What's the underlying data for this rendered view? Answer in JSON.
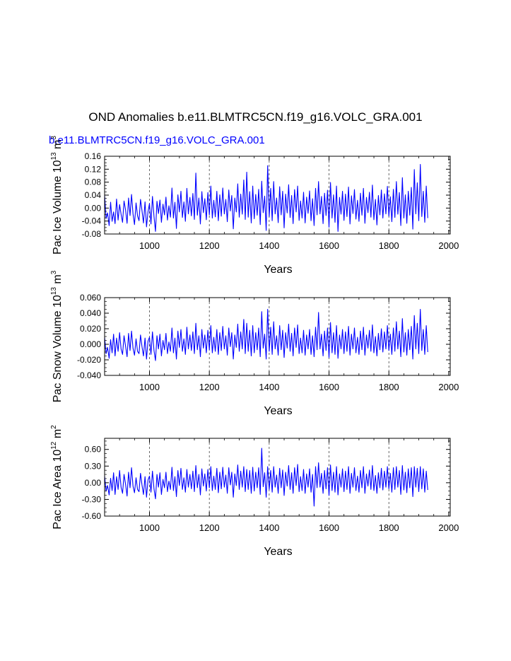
{
  "page": {
    "title": "OND Anomalies b.e11.BLMTRC5CN.f19_g16.VOLC_GRA.001",
    "run_label": "b.e11.BLMTRC5CN.f19_g16.VOLC_GRA.001",
    "line_color": "#0000ff",
    "grid_color": "#444444"
  },
  "chart_data": [
    {
      "type": "line",
      "title": "",
      "ylabel_main": "Pac Ice Volume 10",
      "ylabel_exp1": "13",
      "ylabel_unit": " m",
      "ylabel_exp2": "3",
      "xlabel": "Years",
      "xlim": [
        850,
        2005
      ],
      "ylim": [
        -0.08,
        0.16
      ],
      "yticks": [
        -0.08,
        -0.04,
        0.0,
        0.04,
        0.08,
        0.12,
        0.16
      ],
      "ytick_labels": [
        "-0.08",
        "-0.04",
        "0.00",
        "0.04",
        "0.08",
        "0.12",
        "0.16"
      ],
      "xticks": [
        1000,
        1200,
        1400,
        1600,
        1800,
        2000
      ],
      "xtick_labels": [
        "1000",
        "1200",
        "1400",
        "1600",
        "1800",
        "2000"
      ],
      "grid_x": [
        1000,
        1200,
        1400,
        1600,
        1800
      ],
      "series": [
        {
          "name": "Pac Ice Volume",
          "x_start": 850,
          "x_step": 5,
          "values": [
            0.04,
            -0.032,
            -0.015,
            -0.054,
            0.018,
            -0.041,
            -0.012,
            -0.048,
            0.028,
            -0.037,
            0.011,
            -0.019,
            -0.044,
            0.022,
            -0.005,
            -0.047,
            0.031,
            -0.023,
            0.042,
            -0.018,
            -0.051,
            0.016,
            -0.024,
            -0.039,
            0.027,
            -0.008,
            -0.046,
            0.019,
            -0.058,
            -0.011,
            0.014,
            -0.049,
            0.036,
            -0.026,
            -0.072,
            0.021,
            -0.017,
            0.025,
            -0.044,
            0.012,
            -0.021,
            0.034,
            -0.037,
            0.007,
            -0.028,
            0.062,
            -0.031,
            0.018,
            -0.063,
            0.041,
            -0.012,
            0.052,
            -0.029,
            0.019,
            -0.041,
            0.061,
            -0.018,
            0.033,
            -0.024,
            0.045,
            -0.035,
            0.108,
            -0.022,
            0.031,
            -0.049,
            0.051,
            -0.014,
            0.029,
            -0.036,
            0.048,
            -0.021,
            0.068,
            -0.031,
            0.024,
            -0.027,
            0.052,
            -0.039,
            0.041,
            -0.025,
            0.062,
            -0.018,
            0.027,
            -0.042,
            0.056,
            -0.009,
            0.039,
            -0.064,
            0.031,
            -0.012,
            0.075,
            -0.028,
            0.043,
            -0.019,
            0.087,
            -0.035,
            0.111,
            -0.028,
            0.051,
            -0.046,
            0.068,
            -0.033,
            0.042,
            -0.022,
            0.058,
            -0.051,
            0.083,
            -0.014,
            0.037,
            -0.069,
            0.131,
            -0.026,
            0.061,
            -0.039,
            0.082,
            -0.018,
            0.031,
            -0.045,
            0.066,
            -0.021,
            0.052,
            -0.061,
            0.043,
            -0.015,
            0.072,
            -0.029,
            0.039,
            -0.048,
            0.057,
            -0.012,
            0.068,
            -0.038,
            0.022,
            -0.031,
            0.049,
            -0.046,
            0.034,
            -0.016,
            0.053,
            -0.039,
            0.029,
            -0.054,
            0.061,
            -0.021,
            0.082,
            -0.018,
            0.036,
            -0.048,
            0.046,
            -0.023,
            0.055,
            -0.059,
            0.079,
            -0.031,
            0.041,
            -0.044,
            0.068,
            -0.072,
            0.033,
            -0.019,
            0.052,
            -0.038,
            0.043,
            -0.026,
            0.065,
            -0.049,
            0.038,
            -0.017,
            0.057,
            -0.034,
            0.024,
            -0.041,
            0.046,
            -0.022,
            0.061,
            -0.047,
            0.033,
            -0.014,
            0.049,
            -0.028,
            0.071,
            -0.036,
            0.027,
            -0.052,
            0.039,
            -0.021,
            0.056,
            -0.031,
            0.044,
            -0.018,
            0.067,
            -0.025,
            0.035,
            -0.042,
            0.058,
            -0.029,
            0.082,
            -0.019,
            0.048,
            -0.054,
            0.094,
            -0.031,
            0.041,
            -0.047,
            0.052,
            -0.022,
            0.064,
            -0.065,
            0.119,
            -0.018,
            0.078,
            -0.039,
            0.135,
            -0.026,
            0.052,
            -0.044,
            0.068,
            -0.031
          ]
        }
      ]
    },
    {
      "type": "line",
      "title": "",
      "ylabel_main": "Pac Snow Volume 10",
      "ylabel_exp1": "13",
      "ylabel_unit": " m",
      "ylabel_exp2": "3",
      "xlabel": "Years",
      "xlim": [
        850,
        2005
      ],
      "ylim": [
        -0.04,
        0.06
      ],
      "yticks": [
        -0.04,
        -0.02,
        0.0,
        0.02,
        0.04,
        0.06
      ],
      "ytick_labels": [
        "-0.040",
        "-0.020",
        "0.000",
        "0.020",
        "0.040",
        "0.060"
      ],
      "xticks": [
        1000,
        1200,
        1400,
        1600,
        1800,
        2000
      ],
      "xtick_labels": [
        "1000",
        "1200",
        "1400",
        "1600",
        "1800",
        "2000"
      ],
      "grid_x": [
        1000,
        1200,
        1400,
        1600,
        1800
      ],
      "series": [
        {
          "name": "Pac Snow Volume",
          "x_start": 850,
          "x_step": 5,
          "values": [
            0.009,
            -0.012,
            -0.004,
            -0.018,
            0.006,
            -0.011,
            0.013,
            -0.015,
            0.008,
            -0.009,
            0.015,
            -0.006,
            -0.013,
            0.011,
            -0.002,
            -0.016,
            0.014,
            -0.008,
            0.017,
            -0.005,
            -0.014,
            0.007,
            -0.009,
            -0.012,
            0.012,
            -0.003,
            -0.015,
            0.008,
            -0.019,
            0.004,
            0.009,
            -0.013,
            0.016,
            -0.008,
            -0.021,
            0.011,
            -0.006,
            0.013,
            -0.015,
            0.005,
            -0.007,
            0.014,
            -0.012,
            0.003,
            -0.009,
            0.021,
            -0.011,
            0.008,
            -0.019,
            0.017,
            -0.004,
            0.019,
            -0.009,
            0.007,
            -0.013,
            0.022,
            -0.006,
            0.012,
            -0.008,
            0.016,
            -0.012,
            0.027,
            -0.007,
            0.011,
            -0.016,
            0.019,
            -0.005,
            0.012,
            -0.011,
            0.018,
            -0.007,
            0.024,
            -0.011,
            0.009,
            -0.009,
            0.019,
            -0.013,
            0.015,
            -0.008,
            0.023,
            -0.006,
            0.011,
            -0.014,
            0.021,
            -0.003,
            0.015,
            -0.019,
            0.012,
            -0.004,
            0.026,
            -0.009,
            0.016,
            -0.006,
            0.032,
            -0.012,
            0.027,
            -0.009,
            0.018,
            -0.015,
            0.024,
            -0.011,
            0.015,
            -0.007,
            0.021,
            -0.016,
            0.042,
            -0.005,
            0.013,
            -0.019,
            0.045,
            -0.009,
            0.022,
            -0.013,
            0.029,
            -0.006,
            0.011,
            -0.014,
            0.024,
            -0.007,
            0.018,
            -0.017,
            0.015,
            -0.005,
            0.026,
            -0.009,
            0.014,
            -0.015,
            0.021,
            -0.004,
            0.025,
            -0.012,
            0.008,
            -0.011,
            0.018,
            -0.014,
            0.012,
            -0.006,
            0.019,
            -0.013,
            0.011,
            -0.016,
            0.022,
            -0.007,
            0.041,
            -0.006,
            0.013,
            -0.015,
            0.017,
            -0.008,
            0.021,
            -0.017,
            0.028,
            -0.011,
            0.015,
            -0.013,
            0.024,
            -0.018,
            0.012,
            -0.006,
            0.019,
            -0.012,
            0.016,
            -0.009,
            0.023,
            -0.014,
            0.013,
            -0.006,
            0.021,
            -0.011,
            0.009,
            -0.013,
            0.017,
            -0.007,
            0.022,
            -0.014,
            0.012,
            -0.005,
            0.018,
            -0.009,
            0.025,
            -0.011,
            0.01,
            -0.015,
            0.014,
            -0.007,
            0.02,
            -0.01,
            0.016,
            -0.006,
            0.024,
            -0.008,
            0.013,
            -0.013,
            0.021,
            -0.009,
            0.029,
            -0.006,
            0.017,
            -0.016,
            0.033,
            -0.01,
            0.015,
            -0.014,
            0.019,
            -0.007,
            0.023,
            -0.019,
            0.037,
            -0.006,
            0.027,
            -0.012,
            0.045,
            -0.008,
            0.019,
            -0.013,
            0.024,
            -0.01
          ]
        }
      ]
    },
    {
      "type": "line",
      "title": "",
      "ylabel_main": "Pac Ice Area 10",
      "ylabel_exp1": "12",
      "ylabel_unit": " m",
      "ylabel_exp2": "2",
      "xlabel": "Years",
      "xlim": [
        850,
        2005
      ],
      "ylim": [
        -0.6,
        0.8
      ],
      "yticks": [
        -0.6,
        -0.3,
        0.0,
        0.3,
        0.6
      ],
      "ytick_labels": [
        "-0.60",
        "-0.30",
        "0.00",
        "0.30",
        "0.60"
      ],
      "xticks": [
        1000,
        1200,
        1400,
        1600,
        1800,
        2000
      ],
      "xtick_labels": [
        "1000",
        "1200",
        "1400",
        "1600",
        "1800",
        "2000"
      ],
      "grid_x": [
        1000,
        1200,
        1400,
        1600,
        1800
      ],
      "series": [
        {
          "name": "Pac Ice Area",
          "x_start": 850,
          "x_step": 5,
          "values": [
            0.12,
            -0.15,
            -0.05,
            -0.22,
            0.08,
            -0.14,
            0.18,
            -0.21,
            0.11,
            -0.12,
            0.22,
            -0.08,
            -0.19,
            0.15,
            -0.02,
            -0.24,
            0.19,
            -0.09,
            0.27,
            -0.06,
            -0.18,
            0.09,
            -0.12,
            -0.16,
            0.17,
            -0.04,
            -0.21,
            0.11,
            -0.26,
            0.05,
            0.12,
            -0.17,
            0.21,
            -0.11,
            -0.29,
            0.15,
            -0.08,
            0.18,
            -0.21,
            0.06,
            -0.09,
            0.19,
            -0.16,
            0.03,
            -0.12,
            0.28,
            -0.14,
            0.11,
            -0.25,
            0.22,
            -0.05,
            0.26,
            -0.12,
            0.09,
            -0.17,
            0.24,
            -0.08,
            0.15,
            -0.11,
            0.21,
            -0.16,
            0.31,
            -0.09,
            0.15,
            -0.22,
            0.25,
            -0.06,
            0.16,
            -0.15,
            0.24,
            -0.09,
            0.29,
            -0.14,
            0.12,
            -0.12,
            0.26,
            -0.18,
            0.19,
            -0.11,
            0.28,
            -0.08,
            0.14,
            -0.19,
            0.27,
            -0.04,
            0.19,
            -0.26,
            0.16,
            -0.05,
            0.32,
            -0.12,
            0.21,
            -0.08,
            0.29,
            -0.16,
            0.24,
            -0.12,
            0.22,
            -0.19,
            0.28,
            -0.15,
            0.19,
            -0.09,
            0.27,
            -0.21,
            0.62,
            -0.07,
            0.18,
            -0.26,
            0.29,
            -0.12,
            0.22,
            -0.17,
            0.29,
            -0.08,
            0.14,
            -0.19,
            0.26,
            -0.09,
            0.23,
            -0.23,
            0.19,
            -0.06,
            0.31,
            -0.12,
            0.18,
            -0.19,
            0.27,
            -0.05,
            0.33,
            -0.16,
            0.11,
            -0.14,
            0.24,
            -0.19,
            0.16,
            -0.08,
            0.25,
            -0.17,
            0.15,
            -0.42,
            0.29,
            -0.09,
            0.36,
            -0.08,
            0.17,
            -0.19,
            0.22,
            -0.11,
            0.27,
            -0.23,
            0.32,
            -0.14,
            0.19,
            -0.17,
            0.29,
            -0.22,
            0.16,
            -0.08,
            0.25,
            -0.16,
            0.21,
            -0.12,
            0.29,
            -0.19,
            0.17,
            -0.08,
            0.27,
            -0.14,
            0.12,
            -0.17,
            0.22,
            -0.09,
            0.29,
            -0.19,
            0.16,
            -0.06,
            0.23,
            -0.12,
            0.31,
            -0.14,
            0.13,
            -0.19,
            0.18,
            -0.09,
            0.26,
            -0.13,
            0.21,
            -0.08,
            0.29,
            -0.11,
            0.17,
            -0.17,
            0.27,
            -0.12,
            0.29,
            -0.08,
            0.22,
            -0.21,
            0.31,
            -0.13,
            0.19,
            -0.18,
            0.25,
            -0.09,
            0.27,
            -0.25,
            0.29,
            -0.08,
            0.26,
            -0.16,
            0.29,
            -0.11,
            0.25,
            -0.17,
            0.21,
            -0.13
          ]
        }
      ]
    }
  ]
}
